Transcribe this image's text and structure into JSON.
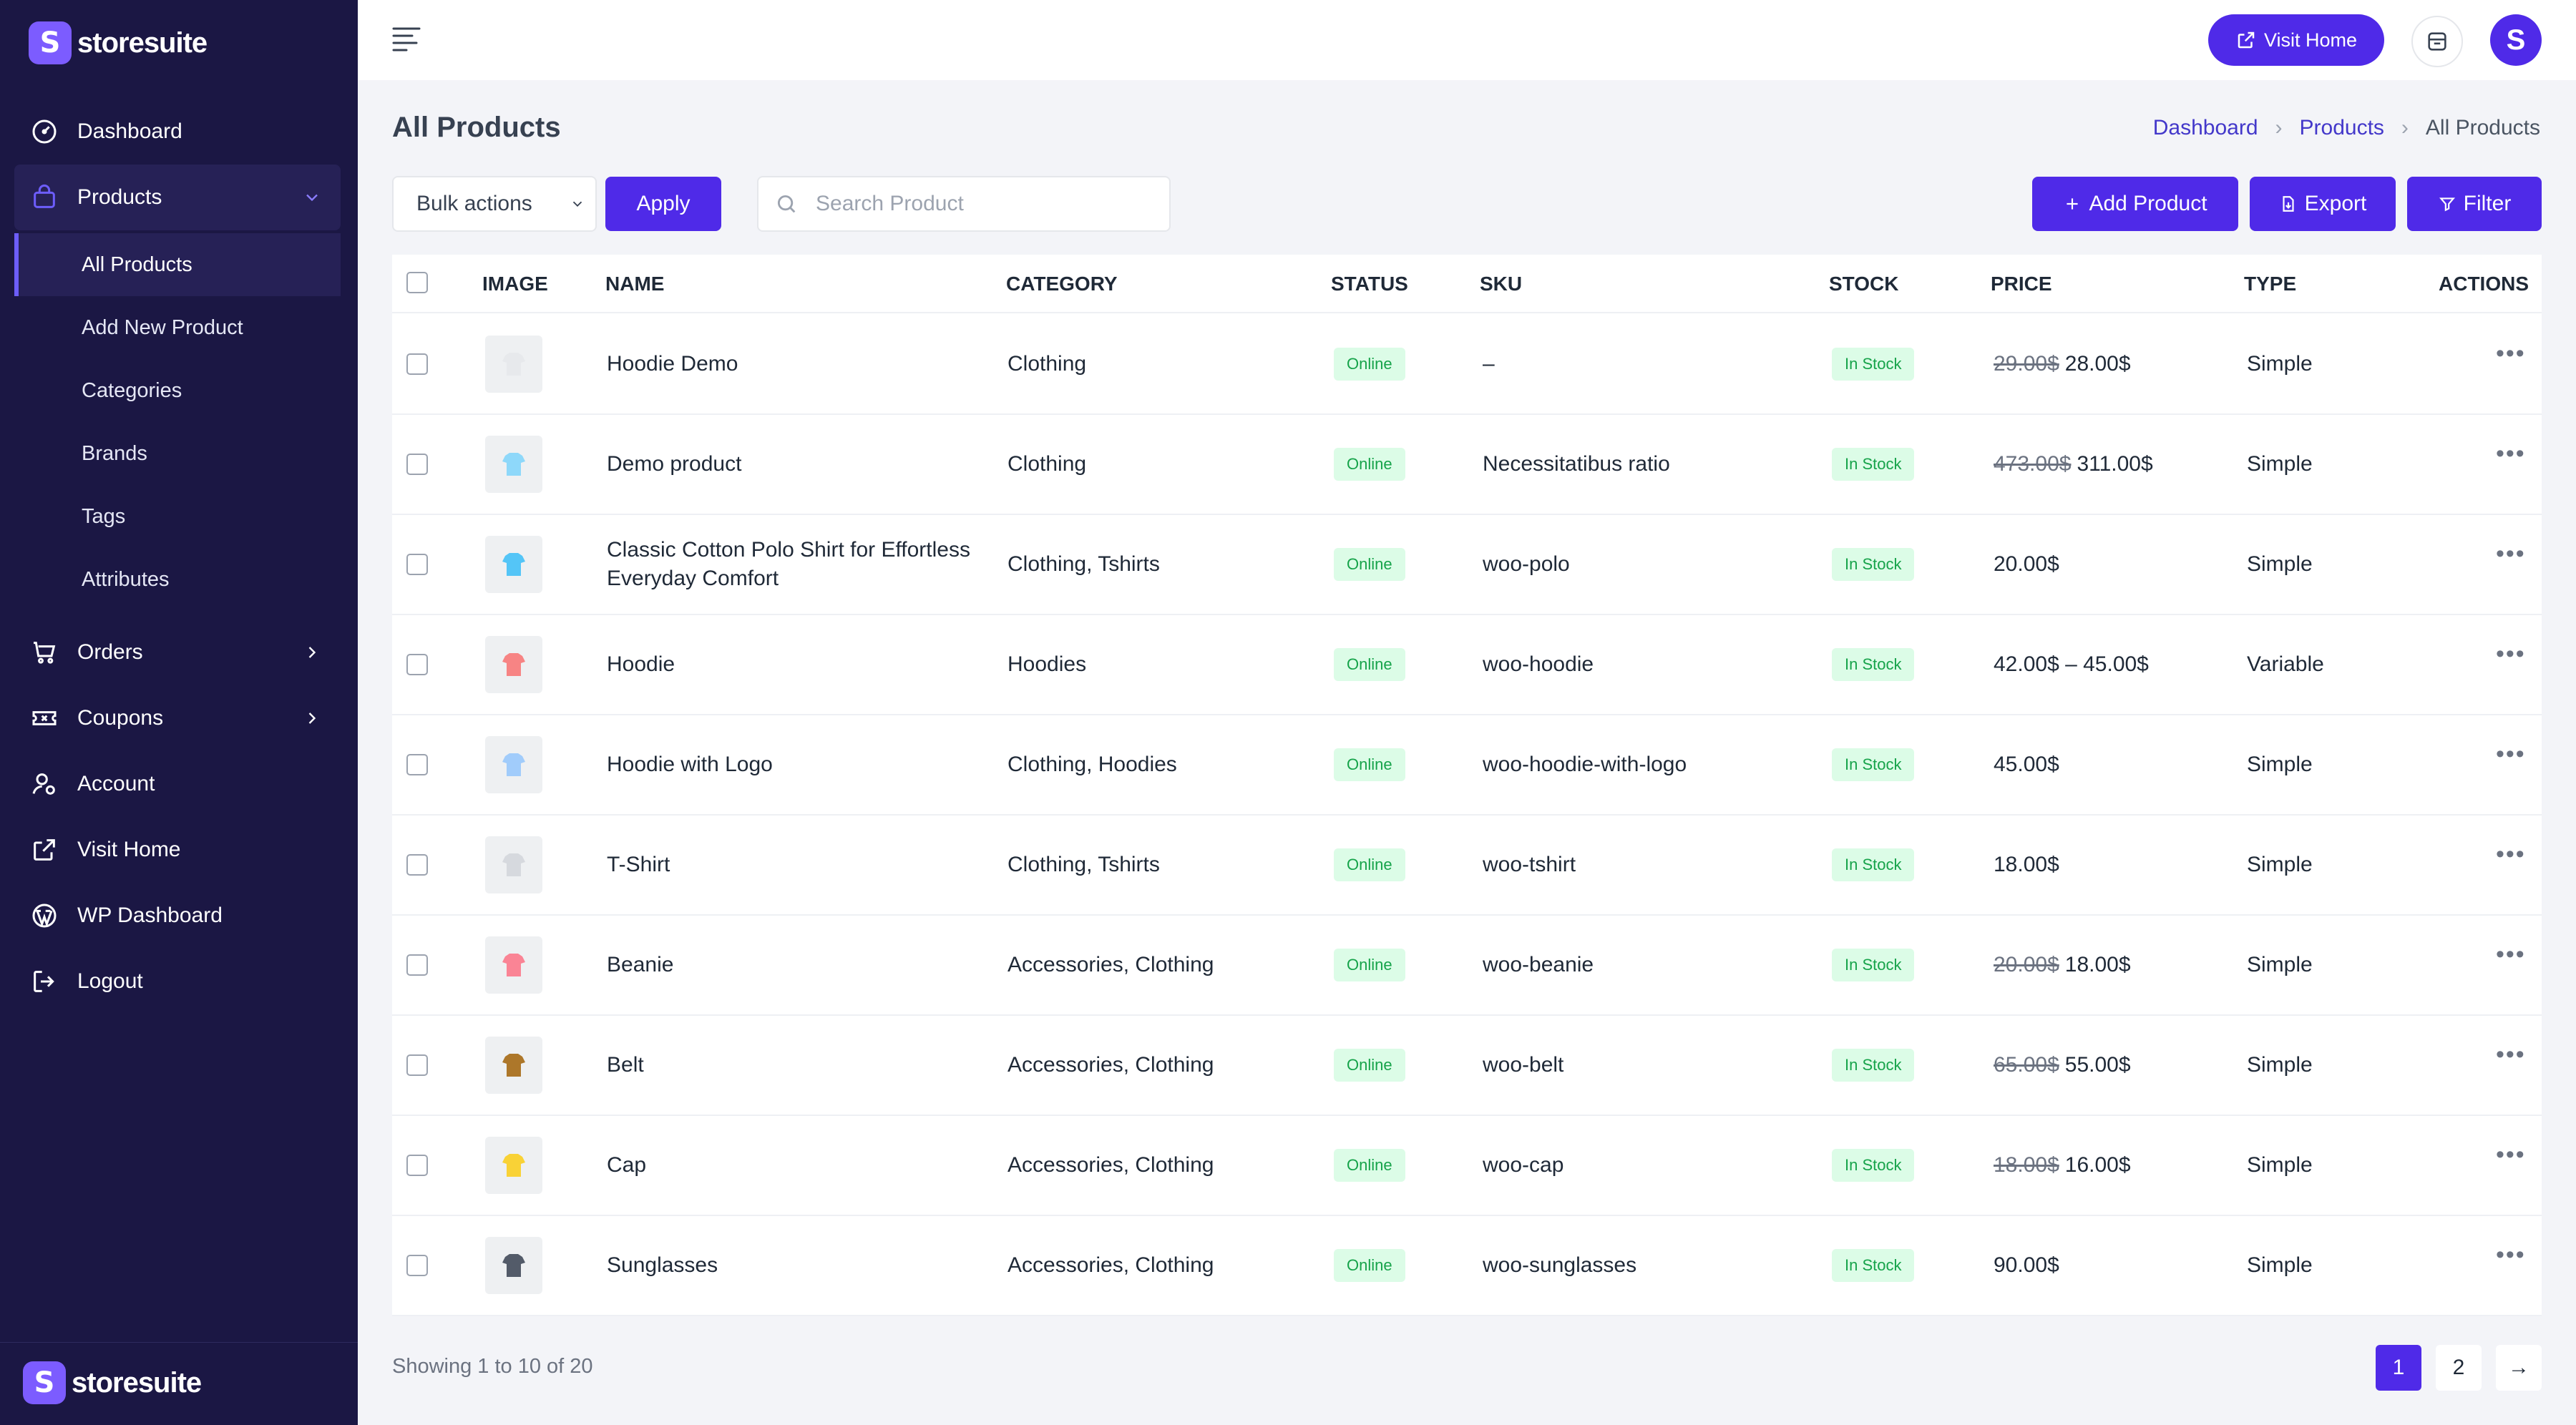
{
  "brand": {
    "name": "storesuite",
    "letter": "S"
  },
  "sidebar": {
    "items": [
      {
        "label": "Dashboard",
        "icon": "dashboard-icon"
      },
      {
        "label": "Products",
        "icon": "bag-icon"
      },
      {
        "label": "Orders",
        "icon": "cart-icon"
      },
      {
        "label": "Coupons",
        "icon": "coupon-icon"
      },
      {
        "label": "Account",
        "icon": "user-icon"
      },
      {
        "label": "Visit Home",
        "icon": "external-link-icon"
      },
      {
        "label": "WP Dashboard",
        "icon": "wordpress-icon"
      },
      {
        "label": "Logout",
        "icon": "logout-icon"
      }
    ],
    "sub_items": [
      {
        "label": "All Products"
      },
      {
        "label": "Add New Product"
      },
      {
        "label": "Categories"
      },
      {
        "label": "Brands"
      },
      {
        "label": "Tags"
      },
      {
        "label": "Attributes"
      }
    ]
  },
  "topbar": {
    "visit_home": "Visit Home",
    "avatar_letter": "S"
  },
  "page": {
    "title": "All Products",
    "breadcrumb": [
      "Dashboard",
      "Products",
      "All Products"
    ]
  },
  "toolbar": {
    "bulk_actions": "Bulk actions",
    "apply": "Apply",
    "search_placeholder": "Search Product",
    "add_product": "Add Product",
    "export": "Export",
    "filter": "Filter"
  },
  "table": {
    "headers": [
      "IMAGE",
      "NAME",
      "CATEGORY",
      "STATUS",
      "SKU",
      "STOCK",
      "PRICE",
      "TYPE",
      "ACTIONS"
    ],
    "rows": [
      {
        "name": "Hoodie Demo",
        "category": "Clothing",
        "status": "Online",
        "sku": "–",
        "stock": "In Stock",
        "old_price": "29.00$",
        "price": "28.00$",
        "type": "Simple"
      },
      {
        "name": "Demo product",
        "category": "Clothing",
        "status": "Online",
        "sku": "Necessitatibus ratio",
        "stock": "In Stock",
        "old_price": "473.00$",
        "price": "311.00$",
        "type": "Simple"
      },
      {
        "name": "Classic Cotton Polo Shirt for Effortless Everyday Comfort",
        "category": "Clothing, Tshirts",
        "status": "Online",
        "sku": "woo-polo",
        "stock": "In Stock",
        "old_price": "",
        "price": "20.00$",
        "type": "Simple"
      },
      {
        "name": "Hoodie",
        "category": "Hoodies",
        "status": "Online",
        "sku": "woo-hoodie",
        "stock": "In Stock",
        "old_price": "",
        "price": "42.00$ – 45.00$",
        "type": "Variable"
      },
      {
        "name": "Hoodie with Logo",
        "category": "Clothing, Hoodies",
        "status": "Online",
        "sku": "woo-hoodie-with-logo",
        "stock": "In Stock",
        "old_price": "",
        "price": "45.00$",
        "type": "Simple"
      },
      {
        "name": "T-Shirt",
        "category": "Clothing, Tshirts",
        "status": "Online",
        "sku": "woo-tshirt",
        "stock": "In Stock",
        "old_price": "",
        "price": "18.00$",
        "type": "Simple"
      },
      {
        "name": "Beanie",
        "category": "Accessories, Clothing",
        "status": "Online",
        "sku": "woo-beanie",
        "stock": "In Stock",
        "old_price": "20.00$",
        "price": "18.00$",
        "type": "Simple"
      },
      {
        "name": "Belt",
        "category": "Accessories, Clothing",
        "status": "Online",
        "sku": "woo-belt",
        "stock": "In Stock",
        "old_price": "65.00$",
        "price": "55.00$",
        "type": "Simple"
      },
      {
        "name": "Cap",
        "category": "Accessories, Clothing",
        "status": "Online",
        "sku": "woo-cap",
        "stock": "In Stock",
        "old_price": "18.00$",
        "price": "16.00$",
        "type": "Simple"
      },
      {
        "name": "Sunglasses",
        "category": "Accessories, Clothing",
        "status": "Online",
        "sku": "woo-sunglasses",
        "stock": "In Stock",
        "old_price": "",
        "price": "90.00$",
        "type": "Simple"
      }
    ]
  },
  "pagination": {
    "showing": "Showing 1 to 10 of 20",
    "pages": [
      "1",
      "2"
    ],
    "next": "→"
  },
  "colors": {
    "sidebar": "#1b1744",
    "accent": "#4f2ae8",
    "badge_bg": "#dcfce7",
    "badge_text": "#16a34a"
  }
}
